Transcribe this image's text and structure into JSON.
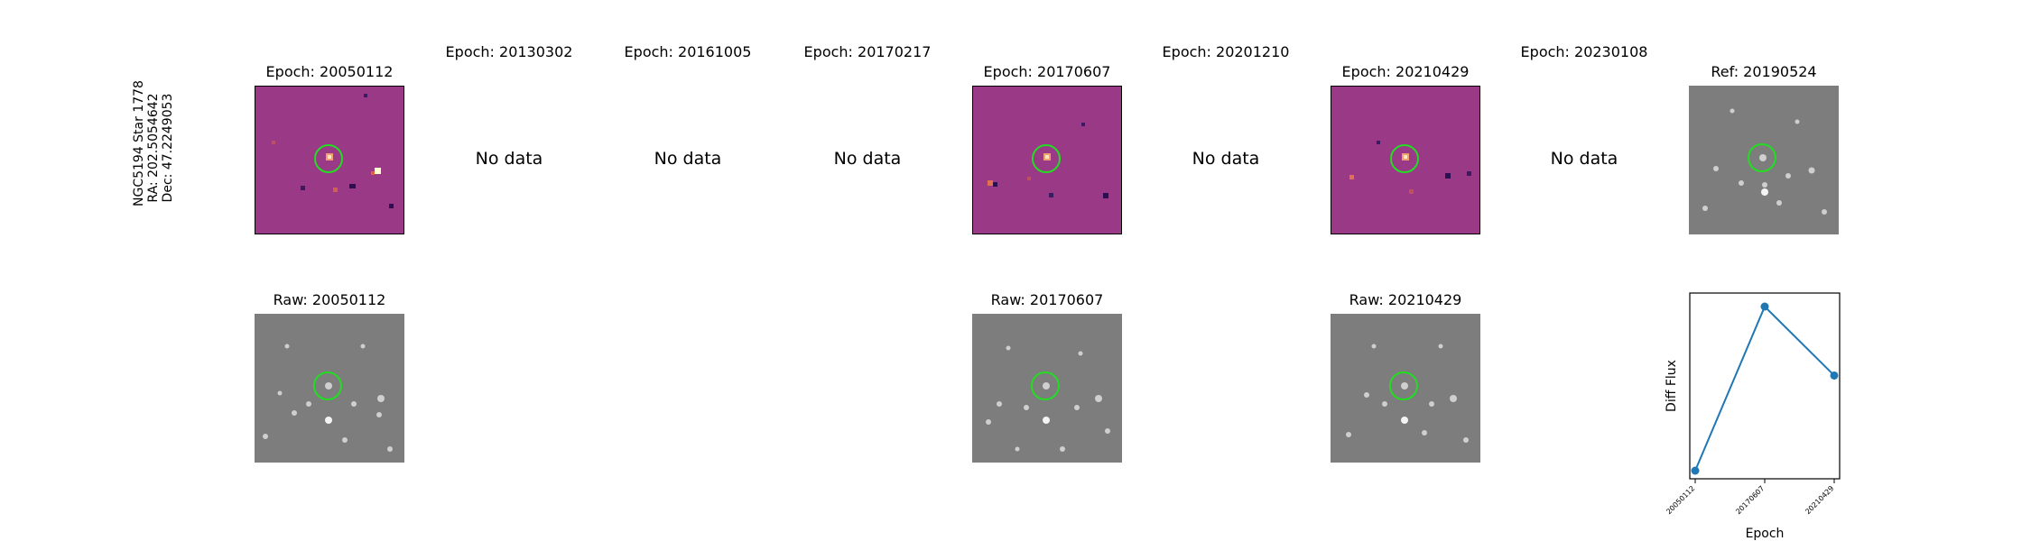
{
  "row_label": {
    "line1": "NGC5194 Star 1778",
    "line2": "RA: 202.5054642",
    "line3": "Dec: 47.2249053"
  },
  "epoch_titles": [
    "Epoch: 20050112",
    "Epoch: 20130302",
    "Epoch: 20161005",
    "Epoch: 20170217",
    "Epoch: 20170607",
    "Epoch: 20201210",
    "Epoch: 20210429",
    "Epoch: 20230108"
  ],
  "ref_title": "Ref: 20190524",
  "raw_titles": [
    "Raw: 20050112",
    "Raw: 20170607",
    "Raw: 20210429"
  ],
  "no_data_label": "No data",
  "colors": {
    "diff_bg": "#9a3a87",
    "raw_bg": "#7d7d7d",
    "ring": "#22dd22",
    "line": "#1f77b4"
  },
  "chart_data": {
    "type": "line",
    "xlabel": "Epoch",
    "ylabel": "Diff Flux",
    "categories": [
      "20050112",
      "20170607",
      "20210429"
    ],
    "values": [
      0.0,
      1.0,
      0.58
    ],
    "y_ticks_shown": false,
    "grid": false
  }
}
